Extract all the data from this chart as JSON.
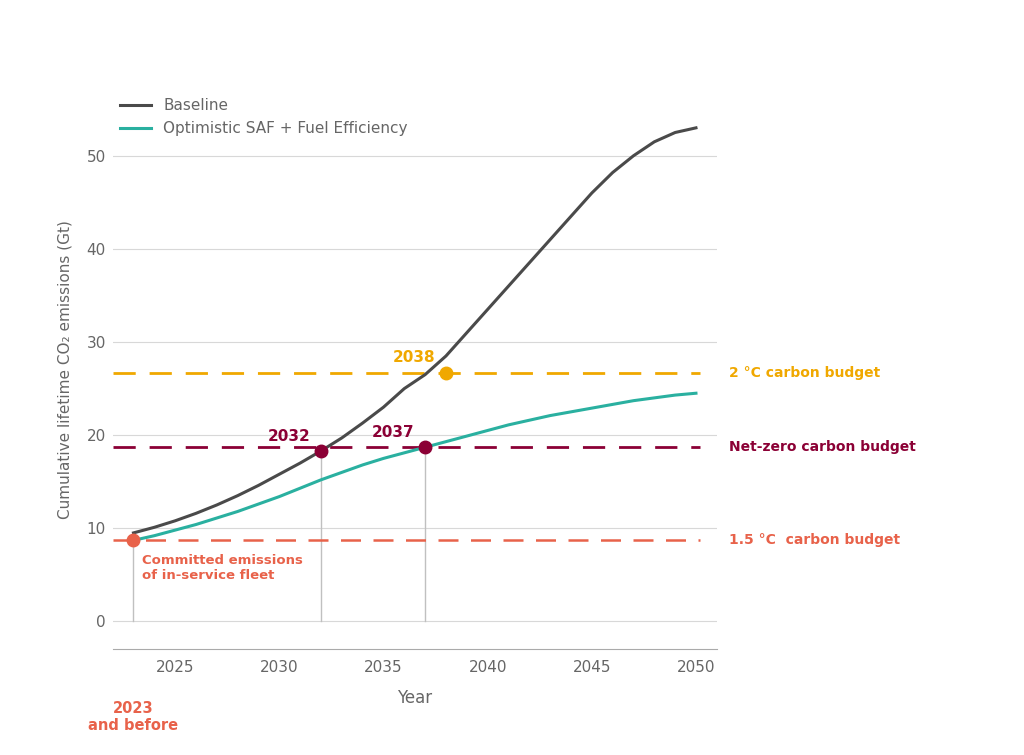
{
  "background_color": "#ffffff",
  "xlabel": "Year",
  "ylabel": "Cumulative lifetime CO₂ emissions (Gt)",
  "xlim": [
    2022,
    2051
  ],
  "ylim": [
    -3,
    57
  ],
  "xticks": [
    2025,
    2030,
    2035,
    2040,
    2045,
    2050
  ],
  "yticks": [
    0,
    10,
    20,
    30,
    40,
    50
  ],
  "baseline_color": "#4a4a4a",
  "optimistic_color": "#2ab0a0",
  "budget_2c_color": "#f0a800",
  "budget_netzero_color": "#8b0035",
  "budget_15c_color": "#e8624a",
  "committed_color": "#e8624a",
  "baseline_x": [
    2023,
    2024,
    2025,
    2026,
    2027,
    2028,
    2029,
    2030,
    2031,
    2032,
    2033,
    2034,
    2035,
    2036,
    2037,
    2038,
    2039,
    2040,
    2041,
    2042,
    2043,
    2044,
    2045,
    2046,
    2047,
    2048,
    2049,
    2050
  ],
  "baseline_y": [
    9.5,
    10.1,
    10.8,
    11.6,
    12.5,
    13.5,
    14.6,
    15.8,
    17.0,
    18.3,
    19.7,
    21.3,
    23.0,
    25.0,
    26.5,
    28.5,
    31.0,
    33.5,
    36.0,
    38.5,
    41.0,
    43.5,
    46.0,
    48.2,
    50.0,
    51.5,
    52.5,
    53.0
  ],
  "optimistic_x": [
    2023,
    2024,
    2025,
    2026,
    2027,
    2028,
    2029,
    2030,
    2031,
    2032,
    2033,
    2034,
    2035,
    2036,
    2037,
    2038,
    2039,
    2040,
    2041,
    2042,
    2043,
    2044,
    2045,
    2046,
    2047,
    2048,
    2049,
    2050
  ],
  "optimistic_y": [
    8.7,
    9.2,
    9.8,
    10.4,
    11.1,
    11.8,
    12.6,
    13.4,
    14.3,
    15.2,
    16.0,
    16.8,
    17.5,
    18.1,
    18.7,
    19.3,
    19.9,
    20.5,
    21.1,
    21.6,
    22.1,
    22.5,
    22.9,
    23.3,
    23.7,
    24.0,
    24.3,
    24.5
  ],
  "budget_2c": 26.7,
  "budget_netzero": 18.7,
  "budget_15c": 8.7,
  "marker_2032_x": 2032,
  "marker_2032_y": 18.3,
  "marker_2037_x": 2037,
  "marker_2037_y": 18.7,
  "marker_2038_x": 2038,
  "marker_2038_y": 26.7,
  "vline_2032": 2032,
  "vline_2037": 2037,
  "vline_2023": 2023,
  "legend_baseline": "Baseline",
  "legend_optimistic": "Optimistic SAF + Fuel Efficiency",
  "label_2c": "2 °C carbon budget",
  "label_netzero": "Net-zero carbon budget",
  "label_15c": "1.5 °C  carbon budget",
  "label_committed": "Committed emissions\nof in-service fleet",
  "label_2023": "2023\nand before",
  "grid_color": "#d8d8d8",
  "vline_color": "#c0c0c0"
}
